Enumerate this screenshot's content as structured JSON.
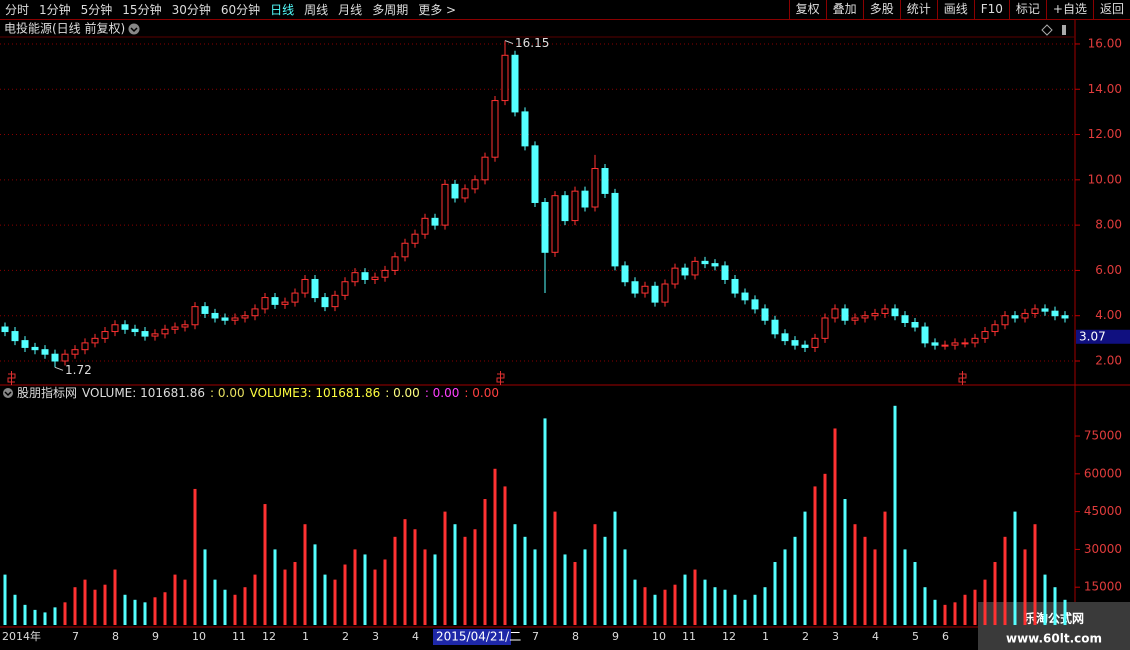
{
  "toolbar": {
    "left": [
      "分时",
      "1分钟",
      "5分钟",
      "15分钟",
      "30分钟",
      "60分钟",
      "日线",
      "周线",
      "月线",
      "多周期",
      "更多 >"
    ],
    "active": 6,
    "right": [
      "复权",
      "叠加",
      "多股",
      "统计",
      "画线",
      "F10",
      "标记",
      "+自选",
      "返回"
    ]
  },
  "cursor_date": "2015/04/21/二",
  "watermark": {
    "title": "乐淘公式网",
    "url": "www.60lt.com"
  },
  "chart_data": [
    {
      "type": "candlestick",
      "title": "电投能源(日线 前复权)",
      "open": [
        3.5,
        3.3,
        2.9,
        2.6,
        2.5,
        2.3,
        2.0,
        2.3,
        2.5,
        2.8,
        3.0,
        3.3,
        3.6,
        3.4,
        3.3,
        3.1,
        3.2,
        3.4,
        3.5,
        3.6,
        4.4,
        4.1,
        3.9,
        3.8,
        3.9,
        4.0,
        4.3,
        4.8,
        4.5,
        4.6,
        5.0,
        5.6,
        4.8,
        4.4,
        4.9,
        5.5,
        5.9,
        5.6,
        5.7,
        6.0,
        6.6,
        7.2,
        7.6,
        8.3,
        8.0,
        9.8,
        9.2,
        9.6,
        10.0,
        11.0,
        13.5,
        15.5,
        13.0,
        11.5,
        9.0,
        6.8,
        9.3,
        8.2,
        9.5,
        8.8,
        10.5,
        9.4,
        6.2,
        5.5,
        5.0,
        5.3,
        4.6,
        5.4,
        6.1,
        5.8,
        6.4,
        6.3,
        6.2,
        5.6,
        5.0,
        4.7,
        4.3,
        3.8,
        3.2,
        2.9,
        2.7,
        2.6,
        3.0,
        3.9,
        4.3,
        3.8,
        3.9,
        4.0,
        4.1,
        4.3,
        4.0,
        3.7,
        3.5,
        2.8,
        2.7,
        2.7,
        2.8,
        2.8,
        3.0,
        3.3,
        3.6,
        4.0,
        3.9,
        4.1,
        4.3,
        4.2,
        4.0
      ],
      "high": [
        3.7,
        3.5,
        3.1,
        2.8,
        2.7,
        2.5,
        2.5,
        2.7,
        3.0,
        3.2,
        3.5,
        3.8,
        3.8,
        3.6,
        3.5,
        3.4,
        3.6,
        3.7,
        3.8,
        4.6,
        4.6,
        4.3,
        4.1,
        4.1,
        4.2,
        4.5,
        5.0,
        5.0,
        4.8,
        5.2,
        5.8,
        5.8,
        5.0,
        5.1,
        5.7,
        6.1,
        6.1,
        5.9,
        6.2,
        6.8,
        7.4,
        7.8,
        8.5,
        8.5,
        10.0,
        10.0,
        9.8,
        10.2,
        11.2,
        13.7,
        16.15,
        15.7,
        13.2,
        11.7,
        9.2,
        9.5,
        9.5,
        9.7,
        9.7,
        11.1,
        10.7,
        9.6,
        6.4,
        5.7,
        5.5,
        5.5,
        5.6,
        6.3,
        6.3,
        6.6,
        6.6,
        6.5,
        6.4,
        5.8,
        5.2,
        4.9,
        4.5,
        4.0,
        3.4,
        3.1,
        2.9,
        3.2,
        4.1,
        4.5,
        4.5,
        4.1,
        4.2,
        4.3,
        4.5,
        4.5,
        4.2,
        3.9,
        3.7,
        3.0,
        2.9,
        3.0,
        3.0,
        3.2,
        3.5,
        3.8,
        4.2,
        4.2,
        4.3,
        4.5,
        4.5,
        4.4,
        4.2
      ],
      "low": [
        3.1,
        2.7,
        2.4,
        2.3,
        2.1,
        1.72,
        1.8,
        2.1,
        2.3,
        2.6,
        2.8,
        3.1,
        3.2,
        3.1,
        2.9,
        2.9,
        3.0,
        3.2,
        3.3,
        3.4,
        3.9,
        3.7,
        3.6,
        3.6,
        3.7,
        3.8,
        4.1,
        4.3,
        4.3,
        4.4,
        4.8,
        4.6,
        4.2,
        4.2,
        4.7,
        5.3,
        5.4,
        5.4,
        5.5,
        5.8,
        6.4,
        7.0,
        7.4,
        7.8,
        7.8,
        9.0,
        9.0,
        9.4,
        9.8,
        10.8,
        13.3,
        12.8,
        11.3,
        8.8,
        5.0,
        6.6,
        8.0,
        8.0,
        8.6,
        8.6,
        9.2,
        6.0,
        5.3,
        4.8,
        4.8,
        4.4,
        4.4,
        5.2,
        5.6,
        5.6,
        6.1,
        6.0,
        5.4,
        4.8,
        4.5,
        4.1,
        3.6,
        3.0,
        2.7,
        2.5,
        2.4,
        2.4,
        2.8,
        3.7,
        3.6,
        3.6,
        3.7,
        3.8,
        3.9,
        3.8,
        3.5,
        3.3,
        2.6,
        2.5,
        2.5,
        2.5,
        2.6,
        2.6,
        2.8,
        3.1,
        3.4,
        3.7,
        3.7,
        3.9,
        4.0,
        3.8,
        3.7
      ],
      "close": [
        3.3,
        2.9,
        2.6,
        2.5,
        2.3,
        2.0,
        2.3,
        2.5,
        2.8,
        3.0,
        3.3,
        3.6,
        3.4,
        3.3,
        3.1,
        3.2,
        3.4,
        3.5,
        3.6,
        4.4,
        4.1,
        3.9,
        3.8,
        3.9,
        4.0,
        4.3,
        4.8,
        4.5,
        4.6,
        5.0,
        5.6,
        4.8,
        4.4,
        4.9,
        5.5,
        5.9,
        5.6,
        5.7,
        6.0,
        6.6,
        7.2,
        7.6,
        8.3,
        8.0,
        9.8,
        9.2,
        9.6,
        10.0,
        11.0,
        13.5,
        15.5,
        13.0,
        11.5,
        9.0,
        6.8,
        9.3,
        8.2,
        9.5,
        8.8,
        10.5,
        9.4,
        6.2,
        5.5,
        5.0,
        5.3,
        4.6,
        5.4,
        6.1,
        5.8,
        6.4,
        6.3,
        6.2,
        5.6,
        5.0,
        4.7,
        4.3,
        3.8,
        3.2,
        2.9,
        2.7,
        2.6,
        3.0,
        3.9,
        4.3,
        3.8,
        3.9,
        4.0,
        4.1,
        4.3,
        4.0,
        3.7,
        3.5,
        2.8,
        2.7,
        2.7,
        2.8,
        2.8,
        3.0,
        3.3,
        3.6,
        4.0,
        3.9,
        4.1,
        4.3,
        4.2,
        4.0,
        3.9
      ],
      "up_color": "#ff3232",
      "down_color": "#54ffff",
      "last_price": 3.07,
      "ylim": [
        0.94,
        16.97
      ],
      "yticks": [
        {
          "value": 2,
          "label": "2.00"
        },
        {
          "value": 4,
          "label": "4.00"
        },
        {
          "value": 6,
          "label": "6.00"
        },
        {
          "value": 8,
          "label": "8.00"
        },
        {
          "value": 10,
          "label": "10.00"
        },
        {
          "value": 12,
          "label": "12.00"
        },
        {
          "value": 14,
          "label": "14.00"
        },
        {
          "value": 16,
          "label": "16.00"
        }
      ],
      "grid": true
    },
    {
      "type": "bar",
      "indicator": [
        {
          "text": "股朋指标网",
          "color": "#dddddd"
        },
        {
          "text": "VOLUME: 101681.86",
          "color": "#dddddd"
        },
        {
          "text": ": 0.00",
          "color": "#e8e060"
        },
        {
          "text": "VOLUME3: 101681.86",
          "color": "#ffff40"
        },
        {
          "text": ": 0.00",
          "color": "#ffff80"
        },
        {
          "text": ": 0.00",
          "color": "#ff40ff"
        },
        {
          "text": ": 0.00",
          "color": "#ff4040"
        }
      ],
      "categories": [
        "2014年",
        null,
        null,
        null,
        null,
        null,
        null,
        "7",
        null,
        null,
        null,
        "8",
        null,
        null,
        null,
        "9",
        null,
        null,
        null,
        "10",
        null,
        null,
        null,
        "11",
        null,
        null,
        "12",
        null,
        null,
        null,
        "1",
        null,
        null,
        null,
        "2",
        null,
        null,
        "3",
        null,
        null,
        null,
        "4",
        null,
        null,
        null,
        null,
        null,
        null,
        null,
        null,
        null,
        null,
        null,
        "7",
        null,
        null,
        null,
        "8",
        null,
        null,
        null,
        "9",
        null,
        null,
        null,
        "10",
        null,
        null,
        "11",
        null,
        null,
        null,
        "12",
        null,
        null,
        null,
        "1",
        null,
        null,
        null,
        "2",
        null,
        null,
        "3",
        null,
        null,
        null,
        "4",
        null,
        null,
        null,
        "5",
        null,
        null,
        "6",
        null,
        null,
        null,
        null,
        null,
        null,
        null,
        null,
        null,
        null,
        null,
        null
      ],
      "values": [
        20000,
        12000,
        8000,
        6000,
        5000,
        7000,
        9000,
        15000,
        18000,
        14000,
        16000,
        22000,
        12000,
        10000,
        9000,
        11000,
        13000,
        20000,
        18000,
        54000,
        30000,
        18000,
        14000,
        12000,
        15000,
        20000,
        48000,
        30000,
        22000,
        25000,
        40000,
        32000,
        20000,
        18000,
        24000,
        30000,
        28000,
        22000,
        26000,
        35000,
        42000,
        38000,
        30000,
        28000,
        45000,
        40000,
        35000,
        38000,
        50000,
        62000,
        55000,
        40000,
        35000,
        30000,
        82000,
        45000,
        28000,
        25000,
        30000,
        40000,
        35000,
        45000,
        30000,
        18000,
        15000,
        12000,
        14000,
        16000,
        20000,
        22000,
        18000,
        15000,
        14000,
        12000,
        10000,
        12000,
        15000,
        25000,
        30000,
        35000,
        45000,
        55000,
        60000,
        78000,
        50000,
        40000,
        35000,
        30000,
        45000,
        87000,
        30000,
        25000,
        15000,
        10000,
        8000,
        9000,
        12000,
        14000,
        18000,
        25000,
        35000,
        45000,
        30000,
        40000,
        20000,
        15000,
        10000
      ],
      "ylim": [
        0,
        89300
      ],
      "yticks": [
        15000,
        30000,
        45000,
        60000,
        75000
      ]
    }
  ]
}
